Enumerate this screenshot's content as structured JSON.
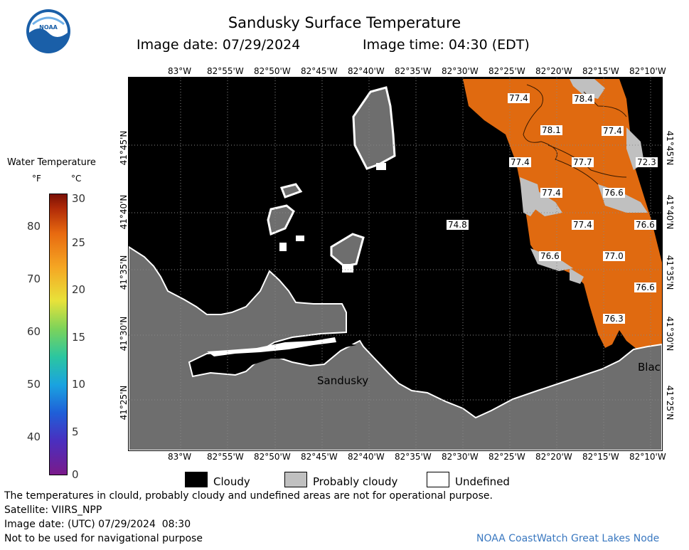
{
  "header": {
    "title": "Sandusky Surface Temperature",
    "image_date": "Image date: 07/29/2024",
    "image_time": "Image time: 04:30 (EDT)",
    "logo_text": "NOAA"
  },
  "colorbar": {
    "title": "Water Temperature",
    "unit_f": "°F",
    "unit_c": "°C",
    "f_ticks": [
      "40",
      "50",
      "60",
      "70",
      "80"
    ],
    "c_ticks": [
      "0",
      "5",
      "10",
      "15",
      "20",
      "25",
      "30"
    ]
  },
  "map": {
    "lon_labels": [
      "83°W",
      "82°55'W",
      "82°50'W",
      "82°45'W",
      "82°40'W",
      "82°35'W",
      "82°30'W",
      "82°25'W",
      "82°20'W",
      "82°15'W",
      "82°10'W"
    ],
    "lat_labels": [
      "41°45'N",
      "41°40'N",
      "41°35'N",
      "41°30'N",
      "41°25'N"
    ],
    "temp_labels": [
      "77.4",
      "78.4",
      "78.1",
      "77.4",
      "77.4",
      "77.7",
      "72.3",
      "77.4",
      "76.6",
      "74.8",
      "77.4",
      "76.6",
      "76.6",
      "77.0",
      "76.6",
      "76.3"
    ],
    "place_labels": [
      "Sandusky",
      "Blac"
    ],
    "colors": {
      "cloudy": "#000000",
      "probably_cloudy": "#c0c0c0",
      "land": "#6e6e6e",
      "warm_water": "#e06a10",
      "undefined": "#ffffff"
    }
  },
  "legend": {
    "cloudy": "Cloudy",
    "probably_cloudy": "Probably cloudy",
    "undefined": "Undefined"
  },
  "footer": {
    "note": "The temperatures in clould, probably cloudy and undefined areas are not for operational purpose.",
    "satellite": "Satellite: VIIRS_NPP",
    "utc_date": "Image date: (UTC) 07/29/2024  08:30",
    "nav": "Not to be used for navigational purpose",
    "credit": "NOAA CoastWatch Great Lakes Node"
  }
}
